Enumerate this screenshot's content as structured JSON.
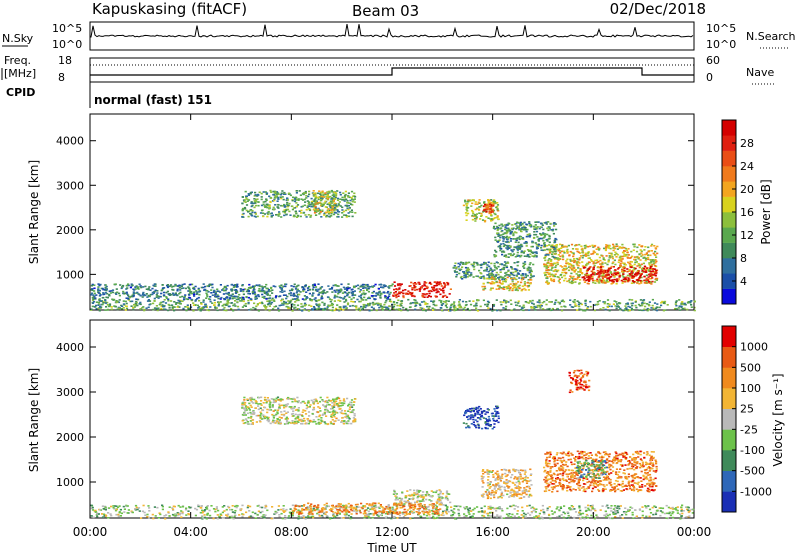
{
  "header": {
    "station": "Kapuskasing (fitACF)",
    "beam": "Beam 03",
    "date": "02/Dec/2018"
  },
  "panels": {
    "nsky": {
      "label": "N.Sky",
      "left_ticks": [
        "10^5",
        "10^0"
      ],
      "right_label": "N.Search",
      "right_ticks": [
        "10^5",
        "10^0"
      ]
    },
    "freq": {
      "label_lines": [
        "Freq.",
        "[MHz]"
      ],
      "left_ticks": [
        "18",
        "8"
      ],
      "right_label": "Nave",
      "right_ticks": [
        "60",
        "0"
      ]
    },
    "cpid": {
      "label": "CPID",
      "value": "normal (fast) 151"
    }
  },
  "colors": {
    "power_scale": [
      "#0a0adc",
      "#1b4fa8",
      "#2f6f9e",
      "#3f8a5a",
      "#59a84e",
      "#8cbf3c",
      "#d8d21e",
      "#f3a51f",
      "#f07a1c",
      "#ea4e16",
      "#e01f10",
      "#d40000"
    ],
    "velocity_scale": [
      "#1a2fb5",
      "#2e67b8",
      "#3f8a5a",
      "#6cc24a",
      "#b9b9b9",
      "#f2b535",
      "#f08a1e",
      "#e85a14",
      "#e20000"
    ]
  },
  "chart_data": [
    {
      "type": "heatmap",
      "name": "power",
      "ylabel": "Slant Range [km]",
      "y_ticks": [
        1000,
        2000,
        3000,
        4000
      ],
      "ylim": [
        200,
        4600
      ],
      "x_ticks": [
        "00:00",
        "04:00",
        "08:00",
        "12:00",
        "16:00",
        "20:00",
        "00:00"
      ],
      "xlim_hours": [
        0,
        24
      ],
      "colorbar": {
        "label": "Power [dB]",
        "ticks": [
          4,
          8,
          12,
          16,
          20,
          24,
          28
        ],
        "range": [
          0,
          32
        ]
      },
      "regions": [
        {
          "t0": 6.0,
          "t1": 10.5,
          "r0": 2300,
          "r1": 2900,
          "level": 0.35
        },
        {
          "t0": 8.8,
          "t1": 9.7,
          "r0": 2400,
          "r1": 2900,
          "level": 0.55
        },
        {
          "t0": 12.0,
          "t1": 14.3,
          "r0": 500,
          "r1": 850,
          "level": 0.9
        },
        {
          "t0": 14.8,
          "t1": 16.2,
          "r0": 2200,
          "r1": 2700,
          "level": 0.5
        },
        {
          "t0": 15.6,
          "t1": 16.0,
          "r0": 2400,
          "r1": 2600,
          "level": 0.8
        },
        {
          "t0": 14.4,
          "t1": 17.6,
          "r0": 900,
          "r1": 1300,
          "level": 0.3
        },
        {
          "t0": 15.5,
          "t1": 17.5,
          "r0": 650,
          "r1": 950,
          "level": 0.55
        },
        {
          "t0": 18.0,
          "t1": 22.5,
          "r0": 800,
          "r1": 1700,
          "level": 0.55
        },
        {
          "t0": 19.5,
          "t1": 22.5,
          "r0": 850,
          "r1": 1200,
          "level": 0.95
        },
        {
          "t0": 16.0,
          "t1": 18.5,
          "r0": 1400,
          "r1": 2200,
          "level": 0.3
        },
        {
          "t0": 0.0,
          "t1": 24.0,
          "r0": 200,
          "r1": 450,
          "level": 0.35
        },
        {
          "t0": 0.0,
          "t1": 12.0,
          "r0": 450,
          "r1": 800,
          "level": 0.25
        }
      ]
    },
    {
      "type": "heatmap",
      "name": "velocity",
      "ylabel": "Slant Range [km]",
      "xlabel": "Time UT",
      "y_ticks": [
        1000,
        2000,
        3000,
        4000
      ],
      "ylim": [
        200,
        4600
      ],
      "x_ticks": [
        "00:00",
        "04:00",
        "08:00",
        "12:00",
        "16:00",
        "20:00",
        "00:00"
      ],
      "xlim_hours": [
        0,
        24
      ],
      "colorbar": {
        "label": "Velocity [m s⁻¹]",
        "ticks": [
          "1000",
          "500",
          "100",
          "25",
          "-25",
          "-100",
          "-500",
          "-1000"
        ]
      },
      "regions": [
        {
          "t0": 6.0,
          "t1": 10.5,
          "r0": 2300,
          "r1": 2900,
          "level": 0.5
        },
        {
          "t0": 12.0,
          "t1": 14.3,
          "r0": 500,
          "r1": 850,
          "level": 0.5
        },
        {
          "t0": 14.8,
          "t1": 16.2,
          "r0": 2200,
          "r1": 2700,
          "level": 0.1
        },
        {
          "t0": 15.5,
          "t1": 17.5,
          "r0": 650,
          "r1": 1300,
          "level": 0.6
        },
        {
          "t0": 18.0,
          "t1": 22.5,
          "r0": 800,
          "r1": 1700,
          "level": 0.75
        },
        {
          "t0": 19.3,
          "t1": 20.5,
          "r0": 1100,
          "r1": 1500,
          "level": 0.3
        },
        {
          "t0": 19.0,
          "t1": 19.8,
          "r0": 3000,
          "r1": 3500,
          "level": 0.85
        },
        {
          "t0": 0.0,
          "t1": 24.0,
          "r0": 200,
          "r1": 500,
          "level": 0.45
        },
        {
          "t0": 8.0,
          "t1": 14.0,
          "r0": 300,
          "r1": 550,
          "level": 0.7
        }
      ]
    }
  ]
}
